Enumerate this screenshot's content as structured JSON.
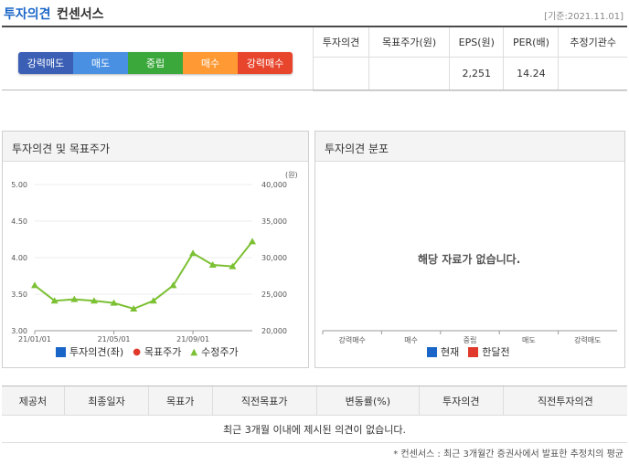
{
  "header": {
    "title": "투자의견",
    "subtitle": "컨센서스",
    "basis": "[기준:2021.11.01]"
  },
  "rating_scale": [
    {
      "label": "강력매도",
      "color": "#3a5fb5"
    },
    {
      "label": "매도",
      "color": "#4a90e2"
    },
    {
      "label": "중립",
      "color": "#3aa83a"
    },
    {
      "label": "매수",
      "color": "#ff9933"
    },
    {
      "label": "강력매수",
      "color": "#e8452d"
    }
  ],
  "summary": {
    "headers": [
      "투자의견",
      "목표주가(원)",
      "EPS(원)",
      "PER(배)",
      "추정기관수"
    ],
    "values": [
      "",
      "",
      "2,251",
      "14.24",
      ""
    ]
  },
  "chart_panel": {
    "title": "투자의견 및 목표주가",
    "legend": [
      {
        "label": "투자의견(좌)",
        "color": "#1a66c8"
      },
      {
        "label": "목표주가",
        "color": "#e0392b"
      },
      {
        "label": "수정주가",
        "color": "#7cc033"
      }
    ]
  },
  "chart_data": {
    "type": "line",
    "x": [
      "21/01/01",
      "",
      "",
      "",
      "21/05/01",
      "",
      "",
      "",
      "21/09/01",
      "",
      "",
      ""
    ],
    "xticks": [
      "21/01/01",
      "21/05/01",
      "21/09/01"
    ],
    "y_left_label": "",
    "y_left_ticks": [
      "5.00",
      "4.50",
      "4.00",
      "3.50",
      "3.00"
    ],
    "y_left_range": [
      3.0,
      5.0
    ],
    "y_right_unit": "(원)",
    "y_right_ticks": [
      "40,000",
      "35,000",
      "30,000",
      "25,000",
      "20,000"
    ],
    "y_right_range": [
      20000,
      40000
    ],
    "series": [
      {
        "name": "수정주가",
        "values": [
          26200,
          24100,
          24300,
          24100,
          23800,
          23000,
          24100,
          26200,
          30600,
          29000,
          28800,
          32200
        ]
      }
    ]
  },
  "dist_panel": {
    "title": "투자의견 분포",
    "nodata": "해당 자료가 없습니다.",
    "categories": [
      "강력매수",
      "매수",
      "중립",
      "매도",
      "강력매도"
    ],
    "legend": [
      {
        "label": "현재",
        "color": "#1a66c8"
      },
      {
        "label": "한달전",
        "color": "#e0392b"
      }
    ]
  },
  "opinions_table": {
    "headers": [
      "제공처",
      "최종일자",
      "목표가",
      "직전목표가",
      "변동률(%)",
      "투자의견",
      "직전투자의견"
    ],
    "empty_message": "최근 3개월 이내에 제시된 의견이 없습니다."
  },
  "footnote": "* 컨센서스 : 최근 3개월간 증권사에서 발표한 추정치의 평균"
}
